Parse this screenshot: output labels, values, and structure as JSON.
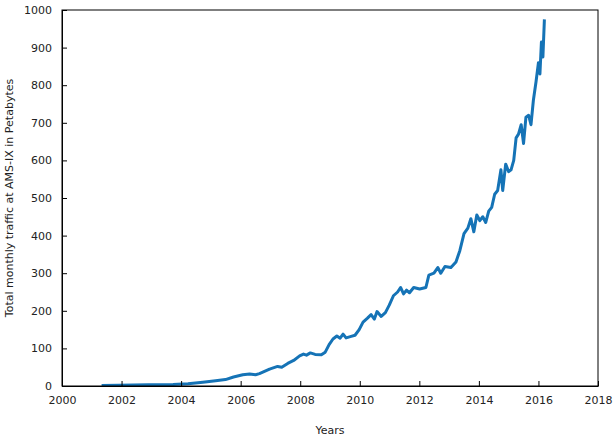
{
  "chart_data": {
    "type": "line",
    "x_label": "Years",
    "y_label": "Total monthly traffic at AMS-IX in Petabytes",
    "color": "#1573b6",
    "grid": false,
    "x": [
      2001.33,
      2001.9,
      2002.9,
      2003.73,
      2004.23,
      2004.73,
      2005.16,
      2005.49,
      2005.76,
      2006.07,
      2006.3,
      2006.5,
      2006.63,
      2006.97,
      2007.24,
      2007.38,
      2007.58,
      2007.78,
      2007.98,
      2008.11,
      2008.21,
      2008.34,
      2008.5,
      2008.71,
      2008.84,
      2008.97,
      2009.1,
      2009.23,
      2009.34,
      2009.44,
      2009.54,
      2009.71,
      2009.84,
      2009.98,
      2010.11,
      2010.25,
      2010.38,
      2010.49,
      2010.58,
      2010.72,
      2010.86,
      2010.99,
      2011.13,
      2011.27,
      2011.37,
      2011.47,
      2011.57,
      2011.67,
      2011.81,
      2012.01,
      2012.22,
      2012.32,
      2012.49,
      2012.62,
      2012.72,
      2012.86,
      2013.06,
      2013.23,
      2013.36,
      2013.5,
      2013.63,
      2013.73,
      2013.83,
      2013.93,
      2014.03,
      2014.13,
      2014.23,
      2014.33,
      2014.43,
      2014.53,
      2014.63,
      2014.74,
      2014.8,
      2014.9,
      2015.0,
      2015.08,
      2015.17,
      2015.25,
      2015.33,
      2015.42,
      2015.5,
      2015.58,
      2015.67,
      2015.75,
      2015.83,
      2015.92,
      2016.0,
      2016.05,
      2016.1,
      2016.15,
      2016.2
    ],
    "values": [
      1,
      2,
      3,
      4,
      6,
      10,
      14,
      17,
      24,
      30,
      32,
      30,
      33,
      45,
      52,
      50,
      60,
      68,
      80,
      85,
      82,
      88,
      84,
      83,
      90,
      110,
      125,
      133,
      127,
      138,
      128,
      132,
      135,
      150,
      170,
      180,
      190,
      178,
      198,
      185,
      195,
      215,
      240,
      250,
      262,
      245,
      255,
      248,
      262,
      258,
      262,
      295,
      300,
      315,
      300,
      318,
      315,
      330,
      360,
      405,
      420,
      445,
      410,
      455,
      440,
      450,
      435,
      465,
      475,
      510,
      520,
      575,
      520,
      590,
      570,
      575,
      600,
      660,
      670,
      695,
      645,
      715,
      720,
      695,
      760,
      810,
      860,
      830,
      915,
      875,
      975
    ],
    "xlim": [
      2000,
      2018
    ],
    "xticks": [
      2000,
      2002,
      2004,
      2006,
      2008,
      2010,
      2012,
      2014,
      2016,
      2018
    ],
    "ylim": [
      0,
      1000
    ],
    "yticks": [
      0,
      100,
      200,
      300,
      400,
      500,
      600,
      700,
      800,
      900,
      1000
    ]
  }
}
